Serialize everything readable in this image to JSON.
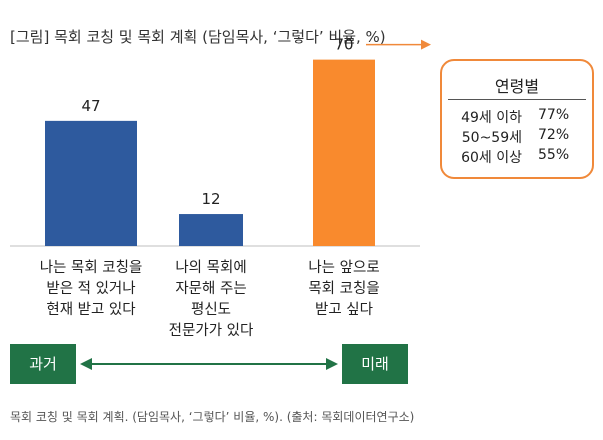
{
  "title": "[그림] 목회 코칭 및 목회 계획 (담임목사, ‘그렇다’ 비율, %)",
  "caption": "목회 코칭 및 목회 계획. (담임목사, ‘그렇다’ 비율, %). (출처: 목회데이터연구소)",
  "chart_data": {
    "type": "bar",
    "title": "[그림] 목회 코칭 및 목회 계획 (담임목사, ‘그렇다’ 비율, %)",
    "categories": [
      [
        "나는 목회 코칭을",
        "받은 적 있거나",
        "현재 받고 있다"
      ],
      [
        "나의 목회에",
        "자문해 주는",
        "평신도",
        "전문가가 있다"
      ],
      [
        "나는 앞으로",
        "목회 코칭을",
        "받고 싶다"
      ]
    ],
    "values": [
      47,
      12,
      70
    ],
    "value_labels": [
      "47",
      "12",
      "70"
    ],
    "colors": [
      "#2e5a9e",
      "#2e5a9e",
      "#f98a2d"
    ],
    "ylim": [
      0,
      80
    ],
    "grid": false,
    "legend": "none",
    "timeline": {
      "left_label": "과거",
      "right_label": "미래",
      "color": "#217346"
    },
    "age_breakdown": {
      "title": "연령별",
      "rows": [
        {
          "label": "49세 이하",
          "value": "77%"
        },
        {
          "label": "50~59세",
          "value": "72%"
        },
        {
          "label": "60세 이상",
          "value": "55%"
        }
      ],
      "border_color": "#f0893a"
    }
  }
}
